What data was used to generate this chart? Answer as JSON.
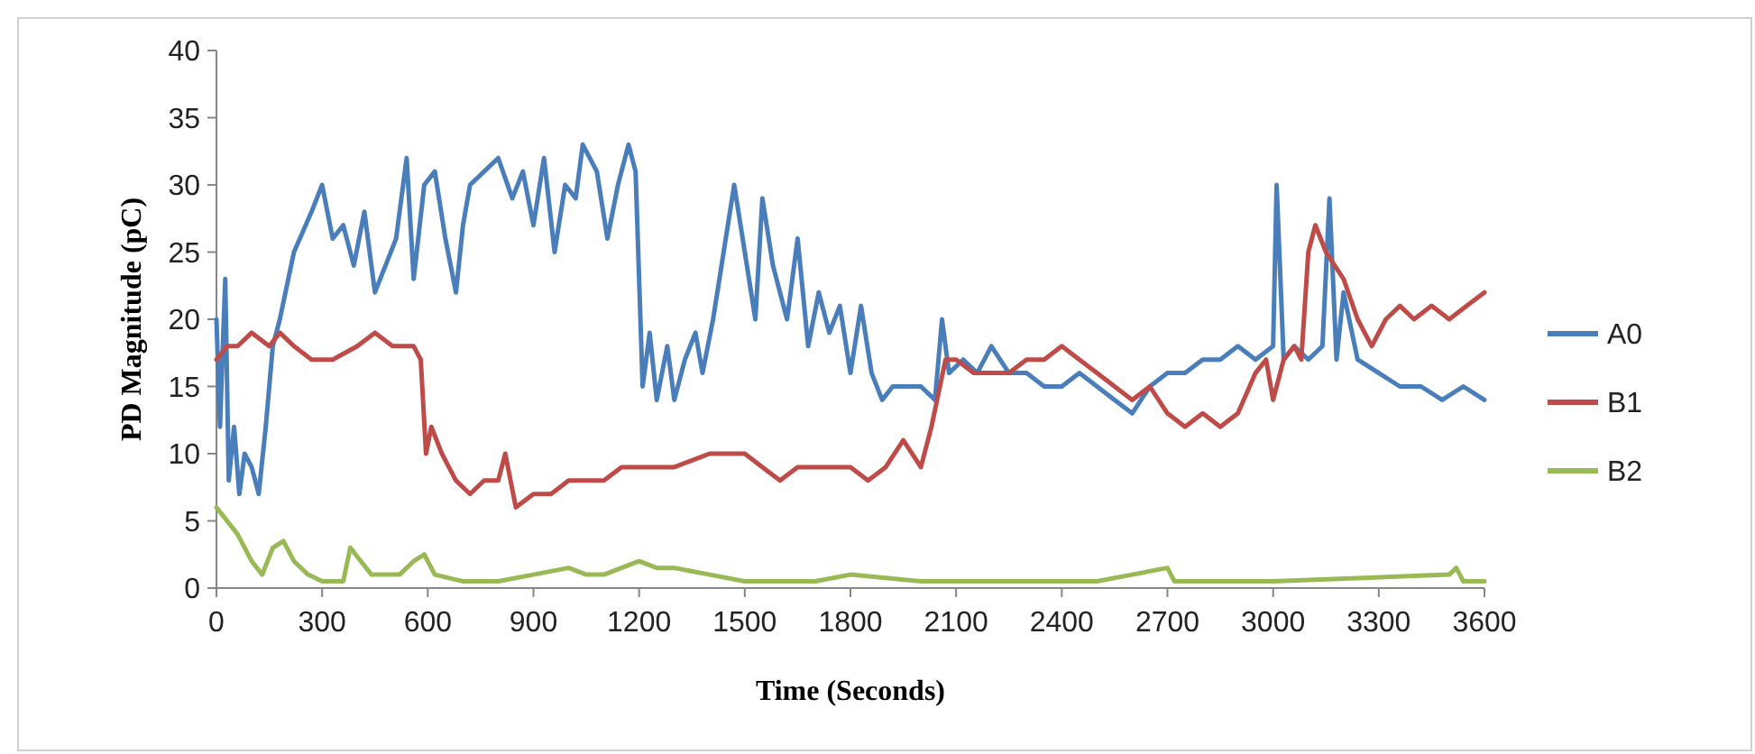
{
  "chart_data": {
    "type": "line",
    "xlabel": "Time (Seconds)",
    "ylabel": "PD Magnitude (pC)",
    "xlim": [
      0,
      3600
    ],
    "xticks": [
      0,
      300,
      600,
      900,
      1200,
      1500,
      1800,
      2100,
      2400,
      2700,
      3000,
      3300,
      3600
    ],
    "ylim": [
      0,
      40
    ],
    "yticks": [
      0,
      5,
      10,
      15,
      20,
      25,
      30,
      35,
      40
    ],
    "grid": false,
    "legend": "right",
    "marker": "none",
    "line_style": "solid",
    "series": [
      {
        "name": "A0",
        "color": "#4a7ebb",
        "x": [
          0,
          10,
          25,
          35,
          50,
          65,
          80,
          100,
          120,
          140,
          160,
          180,
          220,
          270,
          300,
          330,
          360,
          390,
          420,
          450,
          480,
          510,
          540,
          560,
          590,
          620,
          650,
          680,
          700,
          720,
          760,
          800,
          840,
          870,
          900,
          930,
          960,
          990,
          1020,
          1040,
          1080,
          1110,
          1140,
          1170,
          1190,
          1210,
          1230,
          1250,
          1280,
          1300,
          1330,
          1360,
          1380,
          1410,
          1440,
          1470,
          1500,
          1530,
          1550,
          1580,
          1620,
          1650,
          1680,
          1710,
          1740,
          1770,
          1800,
          1830,
          1860,
          1890,
          1920,
          1950,
          2000,
          2040,
          2060,
          2080,
          2120,
          2160,
          2200,
          2250,
          2300,
          2350,
          2400,
          2450,
          2500,
          2550,
          2600,
          2650,
          2700,
          2750,
          2800,
          2850,
          2900,
          2950,
          3000,
          3010,
          3030,
          3060,
          3100,
          3140,
          3160,
          3180,
          3200,
          3240,
          3300,
          3360,
          3420,
          3480,
          3540,
          3600
        ],
        "values": [
          20,
          12,
          23,
          8,
          12,
          7,
          10,
          9,
          7,
          12,
          18,
          20,
          25,
          28,
          30,
          26,
          27,
          24,
          28,
          22,
          24,
          26,
          32,
          23,
          30,
          31,
          26,
          22,
          27,
          30,
          31,
          32,
          29,
          31,
          27,
          32,
          25,
          30,
          29,
          33,
          31,
          26,
          30,
          33,
          31,
          15,
          19,
          14,
          18,
          14,
          17,
          19,
          16,
          20,
          25,
          30,
          25,
          20,
          29,
          24,
          20,
          26,
          18,
          22,
          19,
          21,
          16,
          21,
          16,
          14,
          15,
          15,
          15,
          14,
          20,
          16,
          17,
          16,
          18,
          16,
          16,
          15,
          15,
          16,
          15,
          14,
          13,
          15,
          16,
          16,
          17,
          17,
          18,
          17,
          18,
          30,
          17,
          18,
          17,
          18,
          29,
          17,
          22,
          17,
          16,
          15,
          15,
          14,
          15,
          14
        ]
      },
      {
        "name": "B1",
        "color": "#be4b48",
        "x": [
          0,
          30,
          60,
          100,
          150,
          180,
          220,
          270,
          330,
          400,
          450,
          500,
          560,
          580,
          595,
          610,
          640,
          680,
          720,
          760,
          800,
          820,
          850,
          900,
          950,
          1000,
          1050,
          1100,
          1150,
          1200,
          1300,
          1400,
          1450,
          1500,
          1550,
          1600,
          1650,
          1700,
          1750,
          1800,
          1850,
          1900,
          1950,
          2000,
          2030,
          2070,
          2100,
          2150,
          2200,
          2250,
          2300,
          2350,
          2400,
          2450,
          2500,
          2550,
          2600,
          2650,
          2700,
          2750,
          2800,
          2850,
          2900,
          2950,
          2980,
          3000,
          3030,
          3060,
          3080,
          3100,
          3120,
          3150,
          3200,
          3240,
          3280,
          3320,
          3360,
          3400,
          3450,
          3500,
          3550,
          3600
        ],
        "values": [
          17,
          18,
          18,
          19,
          18,
          19,
          18,
          17,
          17,
          18,
          19,
          18,
          18,
          17,
          10,
          12,
          10,
          8,
          7,
          8,
          8,
          10,
          6,
          7,
          7,
          8,
          8,
          8,
          9,
          9,
          9,
          10,
          10,
          10,
          9,
          8,
          9,
          9,
          9,
          9,
          8,
          9,
          11,
          9,
          12,
          17,
          17,
          16,
          16,
          16,
          17,
          17,
          18,
          17,
          16,
          15,
          14,
          15,
          13,
          12,
          13,
          12,
          13,
          16,
          17,
          14,
          17,
          18,
          17,
          25,
          27,
          25,
          23,
          20,
          18,
          20,
          21,
          20,
          21,
          20,
          21,
          22
        ]
      },
      {
        "name": "B2",
        "color": "#98b954",
        "x": [
          0,
          30,
          60,
          100,
          130,
          160,
          190,
          220,
          260,
          300,
          360,
          380,
          410,
          440,
          480,
          520,
          560,
          590,
          620,
          700,
          800,
          900,
          1000,
          1050,
          1100,
          1200,
          1250,
          1300,
          1400,
          1500,
          1700,
          1800,
          2000,
          2500,
          2600,
          2700,
          2720,
          3000,
          3500,
          3520,
          3540,
          3600
        ],
        "values": [
          6,
          5,
          4,
          2,
          1,
          3,
          3.5,
          2,
          1,
          0.5,
          0.5,
          3,
          2,
          1,
          1,
          1,
          2,
          2.5,
          1,
          0.5,
          0.5,
          1,
          1.5,
          1,
          1,
          2,
          1.5,
          1.5,
          1,
          0.5,
          0.5,
          1,
          0.5,
          0.5,
          1,
          1.5,
          0.5,
          0.5,
          1,
          1.5,
          0.5,
          0.5
        ]
      }
    ]
  }
}
